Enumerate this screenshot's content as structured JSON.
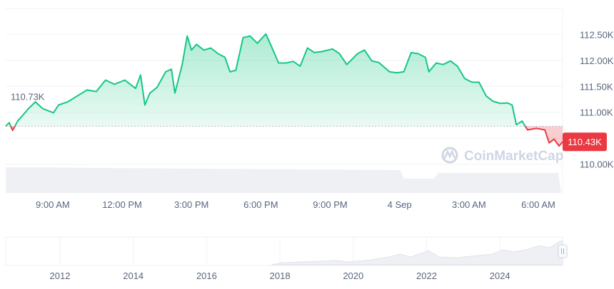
{
  "chart_data": {
    "type": "line",
    "title": "",
    "xlabel": "",
    "ylabel": "",
    "x_tick_labels": [
      "9:00 AM",
      "12:00 PM",
      "3:00 PM",
      "6:00 PM",
      "9:00 PM",
      "4 Sep",
      "3:00 AM",
      "6:00 AM"
    ],
    "y_tick_labels": [
      "112.50K",
      "112.00K",
      "111.50K",
      "111.00K",
      "110.00K"
    ],
    "y_ticks": [
      112.5,
      112.0,
      111.5,
      111.0,
      110.0
    ],
    "ylim": [
      109.5,
      113.0
    ],
    "y_unit": "K",
    "grid": true,
    "baseline": {
      "value": 110.73,
      "label": "110.73K"
    },
    "current": {
      "value": 110.43,
      "label": "110.43K"
    },
    "colors": {
      "up": "#16c784",
      "down": "#ea3943"
    },
    "watermark": "CoinMarketCap",
    "series": [
      {
        "x": [
          "06:58",
          "07:07",
          "07:16",
          "07:29",
          "07:42",
          "07:57",
          "08:15",
          "08:34",
          "09:02",
          "09:15",
          "09:39",
          "10:07",
          "10:29",
          "10:53",
          "11:17",
          "11:40",
          "12:07",
          "12:35",
          "12:48",
          "12:59",
          "13:12",
          "13:31",
          "13:53",
          "14:08",
          "14:17",
          "14:36",
          "14:49",
          "15:00",
          "15:13",
          "15:32",
          "15:50",
          "16:09",
          "16:27",
          "16:40",
          "16:55",
          "17:14",
          "17:32",
          "17:51",
          "18:13",
          "18:28",
          "18:46",
          "19:05",
          "19:24",
          "19:42",
          "20:01",
          "20:19",
          "20:38",
          "21:06",
          "21:24",
          "21:43",
          "22:11",
          "22:29",
          "22:48",
          "23:06",
          "23:34",
          "23:53",
          "00:11",
          "00:30",
          "00:48",
          "01:07",
          "01:16",
          "01:35",
          "01:53",
          "02:12",
          "02:30",
          "02:49",
          "03:08",
          "03:26",
          "03:45",
          "04:03",
          "04:22",
          "04:40",
          "04:52",
          "05:03",
          "05:18",
          "05:32",
          "05:55",
          "06:17",
          "06:28",
          "06:41",
          "06:54",
          "07:03"
        ],
        "values": [
          110.73,
          110.8,
          110.65,
          110.83,
          110.94,
          111.07,
          111.2,
          111.07,
          110.99,
          111.14,
          111.2,
          111.33,
          111.43,
          111.4,
          111.62,
          111.54,
          111.62,
          111.46,
          111.72,
          111.14,
          111.37,
          111.48,
          111.78,
          111.83,
          111.37,
          111.92,
          112.47,
          112.2,
          112.31,
          112.2,
          112.24,
          112.13,
          112.06,
          111.78,
          111.81,
          112.44,
          112.47,
          112.33,
          112.51,
          112.26,
          111.95,
          111.95,
          111.98,
          111.89,
          112.24,
          112.15,
          112.17,
          112.22,
          112.13,
          111.92,
          112.13,
          112.2,
          111.99,
          111.96,
          111.78,
          111.76,
          111.78,
          112.15,
          112.13,
          112.06,
          111.78,
          111.95,
          111.92,
          111.99,
          111.89,
          111.65,
          111.58,
          111.58,
          111.31,
          111.21,
          111.17,
          111.18,
          111.14,
          110.76,
          110.83,
          110.66,
          110.69,
          110.66,
          110.41,
          110.48,
          110.35,
          110.43
        ]
      }
    ],
    "navigator": {
      "x_tick_labels": [
        "2012",
        "2014",
        "2016",
        "2018",
        "2020",
        "2022",
        "2024"
      ]
    }
  }
}
